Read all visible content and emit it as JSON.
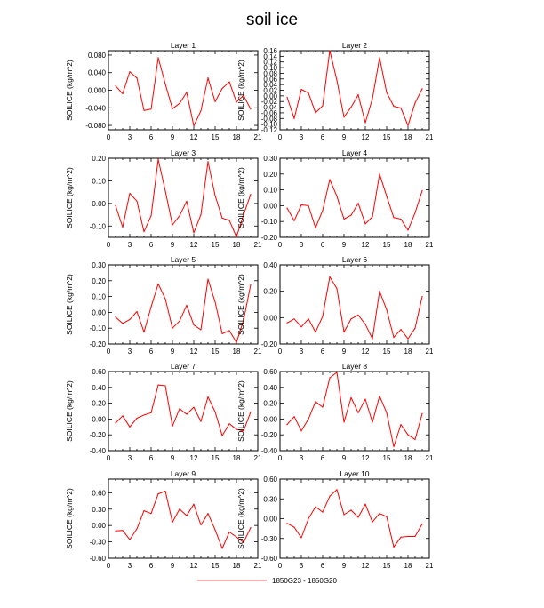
{
  "title": "soil ice",
  "legend": {
    "label": "1850G23 - 1850G20",
    "color": "#ff9999"
  },
  "series_color": "#ff0000",
  "chart_data": [
    {
      "type": "line",
      "title": "Layer 1",
      "ylabel": "SOILICE  (kg/m^2)",
      "xlim": [
        0,
        21
      ],
      "xticks": [
        0,
        3,
        6,
        9,
        12,
        15,
        18,
        21
      ],
      "ylim": [
        -0.09,
        0.09
      ],
      "yticks": [
        -0.08,
        -0.04,
        0.0,
        0.04,
        0.08
      ],
      "yticklabels": [
        "-0.080",
        "-0.040",
        "0.000",
        "0.040",
        "0.080"
      ],
      "x": [
        1,
        2,
        3,
        4,
        5,
        6,
        7,
        8,
        9,
        10,
        11,
        12,
        13,
        14,
        15,
        16,
        17,
        18,
        19,
        20
      ],
      "values": [
        0.01,
        -0.008,
        0.042,
        0.028,
        -0.046,
        -0.043,
        0.074,
        0.014,
        -0.042,
        -0.03,
        -0.005,
        -0.081,
        -0.047,
        0.028,
        -0.026,
        0.004,
        0.019,
        -0.027,
        -0.012,
        -0.043
      ]
    },
    {
      "type": "line",
      "title": "Layer 2",
      "ylabel": "SOILICE  (kg/m^2)",
      "xlim": [
        0,
        21
      ],
      "xticks": [
        0,
        3,
        6,
        9,
        12,
        15,
        18,
        21
      ],
      "ylim": [
        -0.12,
        0.16
      ],
      "yticks": [
        -0.12,
        -0.1,
        -0.08,
        -0.06,
        -0.04,
        -0.02,
        0.0,
        0.02,
        0.04,
        0.06,
        0.08,
        0.1,
        0.12,
        0.14,
        0.16
      ],
      "yticklabels": [
        "-0.12",
        "-0.10",
        "-0.08",
        "-0.06",
        "-0.04",
        "-0.02",
        "0.00",
        "0.02",
        "0.04",
        "0.06",
        "0.08",
        "0.10",
        "0.12",
        "0.14",
        "0.16"
      ],
      "x": [
        1,
        2,
        3,
        4,
        5,
        6,
        7,
        8,
        9,
        10,
        11,
        12,
        13,
        14,
        15,
        16,
        17,
        18,
        19,
        20
      ],
      "values": [
        -0.005,
        -0.08,
        0.023,
        0.01,
        -0.06,
        -0.035,
        0.16,
        0.055,
        -0.075,
        -0.04,
        0.004,
        -0.095,
        -0.01,
        0.135,
        0.012,
        -0.037,
        -0.043,
        -0.105,
        -0.025,
        0.025
      ]
    },
    {
      "type": "line",
      "title": "Layer 3",
      "ylabel": "SOILICE  (kg/m^2)",
      "xlim": [
        0,
        21
      ],
      "xticks": [
        0,
        3,
        6,
        9,
        12,
        15,
        18,
        21
      ],
      "ylim": [
        -0.15,
        0.2
      ],
      "yticks": [
        -0.1,
        0.0,
        0.1,
        0.2
      ],
      "yticklabels": [
        "-0.10",
        "0.00",
        "0.10",
        "0.20"
      ],
      "x": [
        1,
        2,
        3,
        4,
        5,
        6,
        7,
        8,
        9,
        10,
        11,
        12,
        13,
        14,
        15,
        16,
        17,
        18,
        19,
        20
      ],
      "values": [
        -0.01,
        -0.105,
        0.045,
        0.01,
        -0.125,
        -0.055,
        0.195,
        0.055,
        -0.095,
        -0.055,
        0.01,
        -0.13,
        -0.05,
        0.185,
        0.035,
        -0.065,
        -0.075,
        -0.148,
        -0.05,
        0.04
      ]
    },
    {
      "type": "line",
      "title": "Layer 4",
      "ylabel": "SOILICE  (kg/m^2)",
      "xlim": [
        0,
        21
      ],
      "xticks": [
        0,
        3,
        6,
        9,
        12,
        15,
        18,
        21
      ],
      "ylim": [
        -0.2,
        0.3
      ],
      "yticks": [
        -0.2,
        -0.1,
        0.0,
        0.1,
        0.2,
        0.3
      ],
      "yticklabels": [
        "-0.20",
        "-0.10",
        "0.00",
        "0.10",
        "0.20",
        "0.30"
      ],
      "x": [
        1,
        2,
        3,
        4,
        5,
        6,
        7,
        8,
        9,
        10,
        11,
        12,
        13,
        14,
        15,
        16,
        17,
        18,
        19,
        20
      ],
      "values": [
        -0.015,
        -0.095,
        0.005,
        0.0,
        -0.14,
        -0.03,
        0.165,
        0.06,
        -0.085,
        -0.06,
        0.015,
        -0.115,
        -0.07,
        0.2,
        0.06,
        -0.075,
        -0.085,
        -0.155,
        -0.045,
        0.095
      ]
    },
    {
      "type": "line",
      "title": "Layer 5",
      "ylabel": "SOILICE  (kg/m^2)",
      "xlim": [
        0,
        21
      ],
      "xticks": [
        0,
        3,
        6,
        9,
        12,
        15,
        18,
        21
      ],
      "ylim": [
        -0.2,
        0.3
      ],
      "yticks": [
        -0.2,
        -0.1,
        0.0,
        0.1,
        0.2,
        0.3
      ],
      "yticklabels": [
        "-0.20",
        "-0.10",
        "0.00",
        "0.10",
        "0.20",
        "0.30"
      ],
      "x": [
        1,
        2,
        3,
        4,
        5,
        6,
        7,
        8,
        9,
        10,
        11,
        12,
        13,
        14,
        15,
        16,
        17,
        18,
        19,
        20
      ],
      "values": [
        -0.03,
        -0.07,
        -0.045,
        0.005,
        -0.125,
        0.035,
        0.18,
        0.085,
        -0.1,
        -0.055,
        0.045,
        -0.08,
        -0.11,
        0.21,
        0.065,
        -0.135,
        -0.115,
        -0.19,
        -0.05,
        0.175
      ]
    },
    {
      "type": "line",
      "title": "Layer 6",
      "ylabel": "SOILICE  (kg/m^2)",
      "xlim": [
        0,
        21
      ],
      "xticks": [
        0,
        3,
        6,
        9,
        12,
        15,
        18,
        21
      ],
      "ylim": [
        -0.2,
        0.4
      ],
      "yticks": [
        -0.2,
        0.0,
        0.2,
        0.4
      ],
      "yticklabels": [
        "-0.20",
        "0.00",
        "0.20",
        "0.40"
      ],
      "x": [
        1,
        2,
        3,
        4,
        5,
        6,
        7,
        8,
        9,
        10,
        11,
        12,
        13,
        14,
        15,
        16,
        17,
        18,
        19,
        20
      ],
      "values": [
        -0.04,
        -0.01,
        -0.07,
        -0.01,
        -0.11,
        0.01,
        0.31,
        0.22,
        -0.11,
        -0.01,
        0.02,
        -0.05,
        -0.16,
        0.2,
        0.06,
        -0.15,
        -0.09,
        -0.16,
        -0.08,
        0.16
      ]
    },
    {
      "type": "line",
      "title": "Layer 7",
      "ylabel": "SOILICE  (kg/m^2)",
      "xlim": [
        0,
        21
      ],
      "xticks": [
        0,
        3,
        6,
        9,
        12,
        15,
        18,
        21
      ],
      "ylim": [
        -0.4,
        0.6
      ],
      "yticks": [
        -0.4,
        -0.2,
        0.0,
        0.2,
        0.4,
        0.6
      ],
      "yticklabels": [
        "-0.40",
        "-0.20",
        "0.00",
        "0.20",
        "0.40",
        "0.60"
      ],
      "x": [
        1,
        2,
        3,
        4,
        5,
        6,
        7,
        8,
        9,
        10,
        11,
        12,
        13,
        14,
        15,
        16,
        17,
        18,
        19,
        20
      ],
      "values": [
        -0.05,
        0.04,
        -0.1,
        0.01,
        0.05,
        0.08,
        0.43,
        0.42,
        -0.09,
        0.13,
        0.06,
        0.15,
        -0.03,
        0.28,
        0.09,
        -0.21,
        -0.06,
        -0.13,
        -0.15,
        0.09
      ]
    },
    {
      "type": "line",
      "title": "Layer 8",
      "ylabel": "SOILICE  (kg/m^2)",
      "xlim": [
        0,
        21
      ],
      "xticks": [
        0,
        3,
        6,
        9,
        12,
        15,
        18,
        21
      ],
      "ylim": [
        -0.4,
        0.6
      ],
      "yticks": [
        -0.4,
        -0.2,
        0.0,
        0.2,
        0.4,
        0.6
      ],
      "yticklabels": [
        "-0.40",
        "-0.20",
        "0.00",
        "0.20",
        "0.40",
        "0.60"
      ],
      "x": [
        1,
        2,
        3,
        4,
        5,
        6,
        7,
        8,
        9,
        10,
        11,
        12,
        13,
        14,
        15,
        16,
        17,
        18,
        19,
        20
      ],
      "values": [
        -0.07,
        0.03,
        -0.15,
        0.0,
        0.22,
        0.15,
        0.52,
        0.59,
        -0.04,
        0.27,
        0.08,
        0.25,
        -0.04,
        0.29,
        0.08,
        -0.35,
        -0.07,
        -0.2,
        -0.26,
        0.07
      ]
    },
    {
      "type": "line",
      "title": "Layer 9",
      "ylabel": "SOILICE  (kg/m^2)",
      "xlim": [
        0,
        21
      ],
      "xticks": [
        0,
        3,
        6,
        9,
        12,
        15,
        18,
        21
      ],
      "ylim": [
        -0.6,
        0.85
      ],
      "yticks": [
        -0.6,
        -0.3,
        0.0,
        0.3,
        0.6
      ],
      "yticklabels": [
        "-0.60",
        "-0.30",
        "0.00",
        "0.30",
        "0.60"
      ],
      "x": [
        1,
        2,
        3,
        4,
        5,
        6,
        7,
        8,
        9,
        10,
        11,
        12,
        13,
        14,
        15,
        16,
        17,
        18,
        19,
        20
      ],
      "values": [
        -0.1,
        -0.09,
        -0.26,
        -0.06,
        0.27,
        0.22,
        0.58,
        0.63,
        0.06,
        0.3,
        0.18,
        0.39,
        0.01,
        0.22,
        -0.08,
        -0.42,
        -0.12,
        -0.21,
        -0.31,
        -0.04
      ]
    },
    {
      "type": "line",
      "title": "Layer 10",
      "ylabel": "SOILICE  (kg/m^2)",
      "xlim": [
        0,
        21
      ],
      "xticks": [
        0,
        3,
        6,
        9,
        12,
        15,
        18,
        21
      ],
      "ylim": [
        -0.6,
        0.6
      ],
      "yticks": [
        -0.6,
        -0.3,
        0.0,
        0.3,
        0.6
      ],
      "yticklabels": [
        "-0.60",
        "-0.30",
        "0.00",
        "0.30",
        "0.60"
      ],
      "x": [
        1,
        2,
        3,
        4,
        5,
        6,
        7,
        8,
        9,
        10,
        11,
        12,
        13,
        14,
        15,
        16,
        17,
        18,
        19,
        20
      ],
      "values": [
        -0.07,
        -0.13,
        -0.29,
        0.0,
        0.18,
        0.1,
        0.34,
        0.44,
        0.06,
        0.13,
        0.02,
        0.22,
        -0.05,
        0.08,
        0.03,
        -0.43,
        -0.28,
        -0.27,
        -0.27,
        -0.08
      ]
    }
  ]
}
